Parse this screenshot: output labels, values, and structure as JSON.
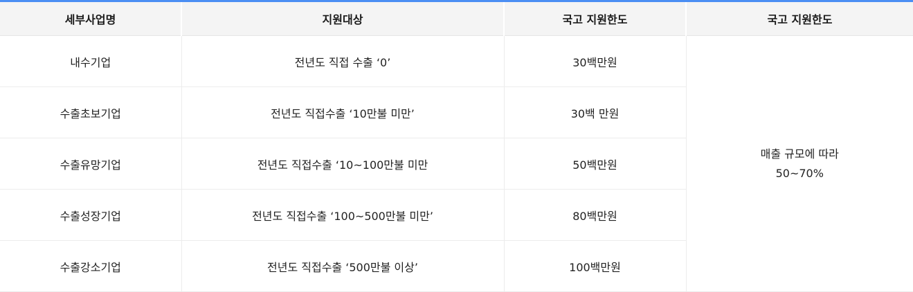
{
  "table": {
    "headers": [
      "세부사업명",
      "지원대상",
      "국고 지원한도",
      "국고 지원한도"
    ],
    "rows": [
      {
        "name": "내수기업",
        "target": "전년도 직접 수출 ‘0’",
        "limit": "30백만원"
      },
      {
        "name": "수출초보기업",
        "target": "전년도 직접수출 ‘10만불 미만’",
        "limit": "30백 만원"
      },
      {
        "name": "수출유망기업",
        "target": "전년도 직접수출 ‘10~100만불 미만",
        "limit": "50백만원"
      },
      {
        "name": "수출성장기업",
        "target": "전년도 직접수출 ‘100~500만불 미만’",
        "limit": "80백만원"
      },
      {
        "name": "수출강소기업",
        "target": "전년도 직접수출 ‘500만불 이상’",
        "limit": "100백만원"
      }
    ],
    "merged_ratio": {
      "line1": "매출 규모에 따라",
      "line2": "50~70%"
    }
  },
  "colors": {
    "header_accent": "#4a8ef3",
    "header_background": "#f4f4f4",
    "border": "#ececec"
  }
}
